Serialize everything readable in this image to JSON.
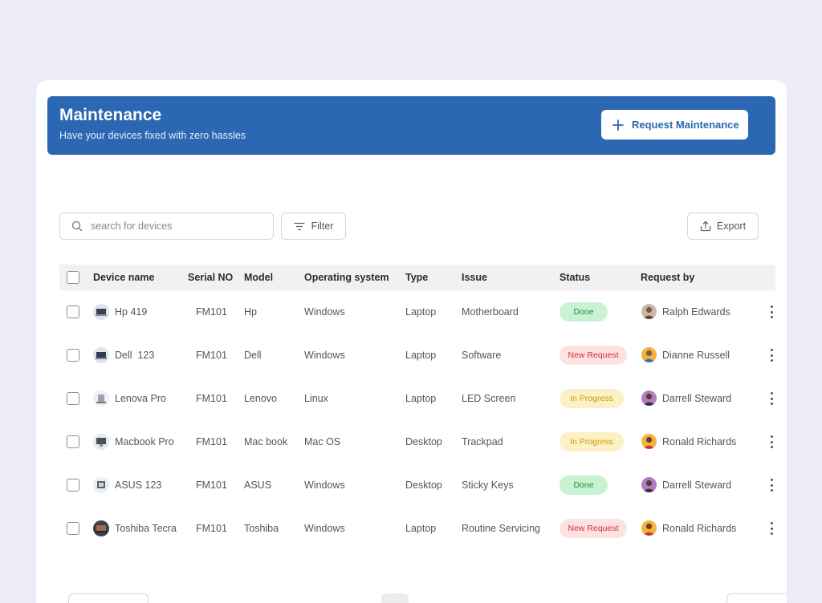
{
  "banner": {
    "title": "Maintenance",
    "subtitle": "Have your devices fixed with zero hassles",
    "request_button": "Request Maintenance"
  },
  "toolbar": {
    "search_placeholder": "search for devices",
    "filter_label": "Filter",
    "export_label": "Export"
  },
  "table": {
    "columns": [
      "Device name",
      "Serial NO",
      "Model",
      "Operating system",
      "Type",
      "Issue",
      "Status",
      "Request by"
    ],
    "rows": [
      {
        "device": "Hp 419",
        "serial": "FM101",
        "model": "Hp",
        "os": "Windows",
        "type": "Laptop",
        "issue": "Motherboard",
        "status": "Done",
        "requester": "Ralph Edwards"
      },
      {
        "device": "Dell  123",
        "serial": "FM101",
        "model": "Dell",
        "os": "Windows",
        "type": "Laptop",
        "issue": "Software",
        "status": "New Request",
        "requester": "Dianne Russell"
      },
      {
        "device": "Lenova Pro",
        "serial": "FM101",
        "model": "Lenovo",
        "os": "Linux",
        "type": "Laptop",
        "issue": "LED Screen",
        "status": "In Progress",
        "requester": "Darrell Steward"
      },
      {
        "device": "Macbook Pro",
        "serial": "FM101",
        "model": "Mac book",
        "os": "Mac OS",
        "type": "Desktop",
        "issue": "Trackpad",
        "status": "In Progress",
        "requester": "Ronald Richards"
      },
      {
        "device": "ASUS 123",
        "serial": "FM101",
        "model": "ASUS",
        "os": "Windows",
        "type": "Desktop",
        "issue": "Sticky Keys",
        "status": "Done",
        "requester": "Darrell Steward"
      },
      {
        "device": "Toshiba Tecra",
        "serial": "FM101",
        "model": "Toshiba",
        "os": "Windows",
        "type": "Laptop",
        "issue": "Routine Servicing",
        "status": "New Request",
        "requester": "Ronald Richards"
      }
    ]
  },
  "colors": {
    "banner": "#2b67b2",
    "page_bg": "#eeeefb",
    "status_done": "#1c8a3b",
    "status_new": "#d22d2d",
    "status_progress": "#c89a06"
  },
  "icons": {
    "request_button": "plus-icon",
    "search": "search-icon",
    "filter": "filter-lines-icon",
    "export": "upload-icon",
    "row_menu": "kebab-menu-icon"
  }
}
